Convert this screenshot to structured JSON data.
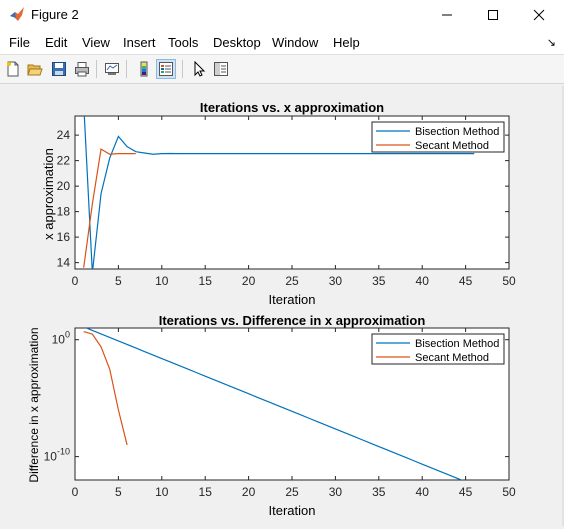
{
  "window": {
    "title": "Figure 2"
  },
  "menu": [
    "File",
    "Edit",
    "View",
    "Insert",
    "Tools",
    "Desktop",
    "Window",
    "Help"
  ],
  "toolbar_icons": [
    "new-figure-icon",
    "open-file-icon",
    "save-icon",
    "print-icon",
    "link-plot-icon",
    "insert-colorbar-icon",
    "insert-legend-icon",
    "pointer-icon",
    "property-inspector-icon"
  ],
  "colors": {
    "bisection": "#0072bd",
    "secant": "#d95319"
  },
  "chart_data": [
    {
      "type": "line",
      "title": "Iterations vs. x approximation",
      "xlabel": "Iteration",
      "ylabel": "x approximation",
      "xlim": [
        0,
        50
      ],
      "ylim": [
        13.5,
        25.5
      ],
      "xticks": [
        0,
        5,
        10,
        15,
        20,
        25,
        30,
        35,
        40,
        45,
        50
      ],
      "yticks": [
        14,
        16,
        18,
        20,
        22,
        24
      ],
      "legend": "top-right",
      "grid": false,
      "series": [
        {
          "name": "Bisection Method",
          "x": [
            1,
            2,
            3,
            4,
            5,
            6,
            7,
            8,
            9,
            10,
            11,
            12,
            13,
            14,
            15,
            16,
            17,
            18,
            19,
            20,
            21,
            22,
            23,
            24,
            25,
            26,
            27,
            28,
            29,
            30,
            31,
            32,
            33,
            34,
            35,
            36,
            37,
            38,
            39,
            40,
            41,
            42,
            43,
            44,
            45,
            46
          ],
          "y": [
            26.5,
            13.2,
            19.4,
            22.2,
            23.9,
            23.1,
            22.7,
            22.6,
            22.5,
            22.55,
            22.56,
            22.55,
            22.55,
            22.55,
            22.55,
            22.55,
            22.55,
            22.55,
            22.55,
            22.55,
            22.55,
            22.55,
            22.55,
            22.55,
            22.55,
            22.55,
            22.55,
            22.55,
            22.55,
            22.55,
            22.55,
            22.55,
            22.55,
            22.55,
            22.55,
            22.55,
            22.55,
            22.55,
            22.55,
            22.55,
            22.55,
            22.55,
            22.55,
            22.55,
            22.55,
            22.55
          ]
        },
        {
          "name": "Secant Method",
          "x": [
            1,
            2,
            3,
            4,
            5,
            6,
            7
          ],
          "y": [
            13.6,
            18.6,
            22.9,
            22.5,
            22.55,
            22.55,
            22.55
          ]
        }
      ]
    },
    {
      "type": "line",
      "title": "Iterations vs. Difference in x approximation",
      "xlabel": "Iteration",
      "ylabel": "Difference in x approximation",
      "xlim": [
        0,
        50
      ],
      "ylim": [
        1e-12,
        10
      ],
      "yscale": "log",
      "xticks": [
        0,
        5,
        10,
        15,
        20,
        25,
        30,
        35,
        40,
        45,
        50
      ],
      "yticks": [
        {
          "value": 1,
          "base": "10",
          "exp": "0"
        },
        {
          "value": 1e-10,
          "base": "10",
          "exp": "-10"
        }
      ],
      "legend": "top-right",
      "grid": false,
      "series": [
        {
          "name": "Bisection Method",
          "x": [
            1,
            2,
            3,
            4,
            5,
            6,
            7,
            8,
            9,
            10,
            11,
            12,
            13,
            14,
            15,
            16,
            17,
            18,
            19,
            20,
            21,
            22,
            23,
            24,
            25,
            26,
            27,
            28,
            29,
            30,
            31,
            32,
            33,
            34,
            35,
            36,
            37,
            38,
            39,
            40,
            41,
            42,
            43,
            44,
            45,
            46
          ],
          "y": [
            12.5,
            6.25,
            3.125,
            1.5625,
            0.78125,
            0.390625,
            0.1953125,
            0.09765625,
            0.048828125,
            0.0244140625,
            0.01220703125,
            0.006103515625,
            0.0030517578125,
            0.00152587890625,
            0.000762939453125,
            0.0003814697265625,
            0.00019073486328125,
            9.5367431640625e-05,
            4.76837158203125e-05,
            2.384185791015625e-05,
            1.1920928955078125e-05,
            5.9604644775390625e-06,
            2.9802322387695312e-06,
            1.4901161193847656e-06,
            7.450580596923828e-07,
            3.725290298461914e-07,
            1.862645149230957e-07,
            9.313225746154785e-08,
            4.6566128730773926e-08,
            2.3283064365386963e-08,
            1.1641532182693481e-08,
            5.820766091346741e-09,
            2.9103830456733704e-09,
            1.4551915228366852e-09,
            7.275957614183426e-10,
            3.637978807091713e-10,
            1.8189894035458565e-10,
            9.094947017729282e-11,
            4.547473508864641e-11,
            2.2737367544323206e-11,
            1.1368683772161603e-11,
            5.6843418860808015e-12,
            2.8421709430404007e-12,
            1.4210854715202004e-12,
            7.105427357601002e-13,
            3.552713678800501e-13
          ]
        },
        {
          "name": "Secant Method",
          "x": [
            1,
            2,
            3,
            4,
            5,
            6
          ],
          "y": [
            5.0,
            3.0,
            0.25,
            0.003,
            1e-06,
            1e-09
          ]
        }
      ]
    }
  ]
}
